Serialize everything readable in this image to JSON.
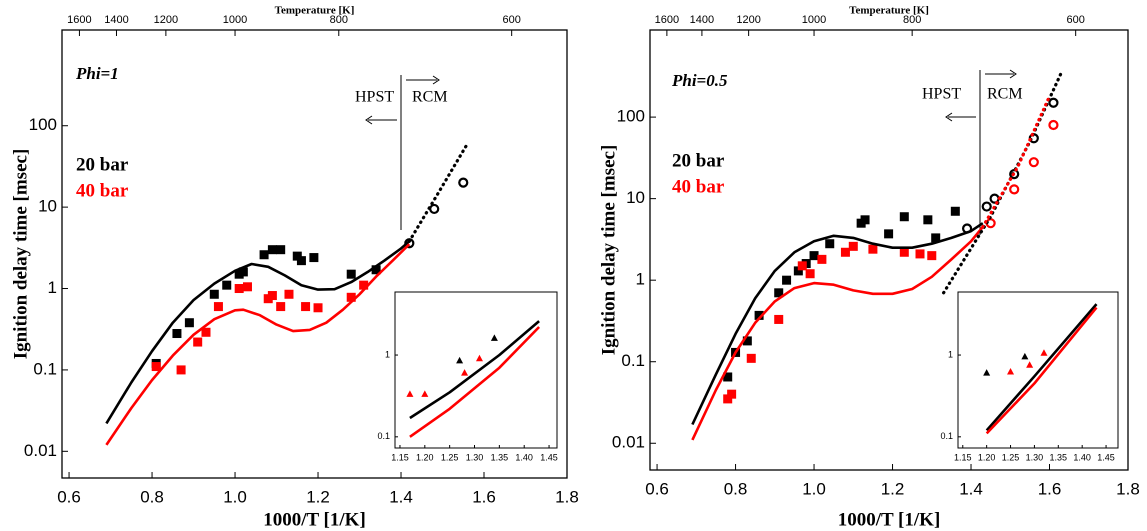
{
  "chart_data": [
    {
      "type": "scatter",
      "x_label": "1000/T [1/K]",
      "y_label": "Ignition delay time [msec]",
      "x2_label": "Temperature [K]",
      "annotations": [
        "Phi=1",
        "HPST",
        "RCM"
      ],
      "xlim": [
        0.583,
        1.8
      ],
      "xticks": [
        0.6,
        0.8,
        {
          "value": 1,
          "label": "1.0"
        },
        1.2,
        1.4,
        1.6,
        1.8
      ],
      "x2ticks": [
        1600,
        1400,
        1200,
        1000,
        800,
        600
      ],
      "y_scale": "log",
      "ylim": [
        0.0047,
        1500
      ],
      "yticks": [
        0.01,
        0.1,
        1,
        10,
        100
      ],
      "series": [
        {
          "name": "20 bar",
          "color": "#000000",
          "marker": "square",
          "x": [
            0.81,
            0.86,
            0.89,
            0.95,
            0.98,
            1.01,
            1.02,
            1.07,
            1.09,
            1.11,
            1.15,
            1.16,
            1.19,
            1.28,
            1.34
          ],
          "values": [
            0.12,
            0.28,
            0.38,
            0.85,
            1.1,
            1.5,
            1.6,
            2.6,
            3.0,
            3.0,
            2.5,
            2.2,
            2.4,
            1.5,
            1.7
          ]
        },
        {
          "name": "40 bar",
          "color": "#ff0000",
          "marker": "square",
          "x": [
            0.81,
            0.87,
            0.91,
            0.93,
            0.96,
            1.01,
            1.03,
            1.08,
            1.09,
            1.11,
            1.13,
            1.17,
            1.2,
            1.28,
            1.31
          ],
          "values": [
            0.11,
            0.1,
            0.22,
            0.29,
            0.6,
            1.0,
            1.05,
            0.75,
            0.82,
            0.6,
            0.85,
            0.6,
            0.58,
            0.78,
            1.1
          ]
        },
        {
          "color": "#000000",
          "marker": "circle-open",
          "x": [
            1.42,
            1.48,
            1.55
          ],
          "values": [
            3.6,
            9.5,
            20
          ]
        },
        {
          "color": "#000000",
          "line": "solid",
          "x": [
            0.69,
            0.75,
            0.8,
            0.85,
            0.9,
            0.95,
            1.0,
            1.04,
            1.08,
            1.12,
            1.16,
            1.2,
            1.24,
            1.28,
            1.32,
            1.36,
            1.4,
            1.42
          ],
          "values": [
            0.022,
            0.07,
            0.17,
            0.38,
            0.72,
            1.15,
            1.65,
            2.0,
            1.85,
            1.45,
            1.1,
            0.97,
            0.98,
            1.2,
            1.6,
            2.2,
            3.1,
            3.8
          ]
        },
        {
          "color": "#ff0000",
          "line": "solid",
          "x": [
            0.69,
            0.75,
            0.8,
            0.85,
            0.9,
            0.95,
            1.0,
            1.02,
            1.06,
            1.1,
            1.14,
            1.18,
            1.22,
            1.26,
            1.3,
            1.34,
            1.38,
            1.42
          ],
          "values": [
            0.012,
            0.034,
            0.075,
            0.15,
            0.27,
            0.42,
            0.54,
            0.55,
            0.47,
            0.36,
            0.3,
            0.31,
            0.38,
            0.55,
            0.85,
            1.4,
            2.2,
            3.5
          ]
        },
        {
          "color": "#000000",
          "line": "dotted",
          "x": [
            1.42,
            1.49,
            1.56
          ],
          "values": [
            3.8,
            15,
            60
          ]
        }
      ],
      "inset": {
        "xlim": [
          1.14,
          1.466
        ],
        "xticks": [
          1.15,
          {
            "value": 1.2,
            "label": "1.20"
          },
          1.25,
          {
            "value": 1.3,
            "label": "1.30"
          },
          1.35,
          {
            "value": 1.4,
            "label": "1.40"
          },
          1.45
        ],
        "y_scale": "log",
        "ylim": [
          0.073,
          5.9
        ],
        "yticks": [
          0.1,
          1
        ],
        "series": [
          {
            "color": "#000000",
            "marker": "triangle",
            "x": [
              1.27,
              1.34
            ],
            "values": [
              0.85,
              1.6
            ]
          },
          {
            "color": "#ff0000",
            "marker": "triangle",
            "x": [
              1.17,
              1.2,
              1.28,
              1.31
            ],
            "values": [
              0.33,
              0.33,
              0.6,
              0.9
            ]
          },
          {
            "color": "#000000",
            "line": "solid",
            "x": [
              1.17,
              1.25,
              1.35,
              1.43
            ],
            "values": [
              0.17,
              0.35,
              1.0,
              2.6
            ]
          },
          {
            "color": "#ff0000",
            "line": "solid",
            "x": [
              1.17,
              1.25,
              1.35,
              1.43
            ],
            "values": [
              0.1,
              0.22,
              0.7,
              2.2
            ]
          }
        ]
      }
    },
    {
      "type": "scatter",
      "x_label": "1000/T [1/K]",
      "y_label": "Ignition delay time [msec]",
      "x2_label": "Temperature [K]",
      "annotations": [
        "Phi=0.5",
        "HPST",
        "RCM"
      ],
      "xlim": [
        0.582,
        1.8
      ],
      "xticks": [
        0.6,
        0.8,
        {
          "value": 1,
          "label": "1.0"
        },
        1.2,
        1.4,
        1.6,
        1.8
      ],
      "x2ticks": [
        1600,
        1400,
        1200,
        1000,
        800,
        600
      ],
      "y_scale": "log",
      "ylim": [
        0.0047,
        1170
      ],
      "yticks": [
        0.01,
        0.1,
        1,
        10,
        100
      ],
      "series": [
        {
          "name": "20 bar",
          "color": "#000000",
          "marker": "square",
          "x": [
            0.78,
            0.8,
            0.83,
            0.86,
            0.91,
            0.93,
            0.96,
            0.98,
            1.0,
            1.04,
            1.12,
            1.13,
            1.19,
            1.23,
            1.29,
            1.31,
            1.36
          ],
          "values": [
            0.065,
            0.13,
            0.18,
            0.37,
            0.7,
            1.0,
            1.3,
            1.6,
            2.0,
            2.8,
            5.0,
            5.5,
            3.7,
            6.0,
            5.5,
            3.3,
            7.0
          ]
        },
        {
          "name": "40 bar",
          "color": "#ff0000",
          "marker": "square",
          "x": [
            0.78,
            0.79,
            0.84,
            0.91,
            0.97,
            0.99,
            1.02,
            1.08,
            1.1,
            1.15,
            1.23,
            1.27,
            1.3
          ],
          "values": [
            0.035,
            0.04,
            0.11,
            0.33,
            1.5,
            1.2,
            1.8,
            2.2,
            2.6,
            2.4,
            2.2,
            2.1,
            2.0
          ]
        },
        {
          "color": "#000000",
          "marker": "circle-open",
          "x": [
            1.39,
            1.44,
            1.46,
            1.51,
            1.56,
            1.61
          ],
          "values": [
            4.3,
            8,
            10,
            20,
            55,
            150
          ]
        },
        {
          "color": "#ff0000",
          "marker": "circle-open",
          "x": [
            1.45,
            1.51,
            1.56,
            1.61
          ],
          "values": [
            5,
            13,
            28,
            80
          ]
        },
        {
          "color": "#000000",
          "line": "solid",
          "x": [
            0.69,
            0.75,
            0.8,
            0.85,
            0.9,
            0.95,
            1.0,
            1.05,
            1.1,
            1.15,
            1.2,
            1.25,
            1.3,
            1.35,
            1.4,
            1.43
          ],
          "values": [
            0.017,
            0.07,
            0.22,
            0.6,
            1.3,
            2.2,
            3.0,
            3.5,
            3.3,
            2.8,
            2.5,
            2.5,
            2.8,
            3.3,
            4.0,
            5.0
          ]
        },
        {
          "color": "#ff0000",
          "line": "solid",
          "x": [
            0.69,
            0.75,
            0.8,
            0.85,
            0.9,
            0.95,
            1.0,
            1.05,
            1.1,
            1.15,
            1.2,
            1.25,
            1.3,
            1.35,
            1.4,
            1.43
          ],
          "values": [
            0.011,
            0.045,
            0.13,
            0.3,
            0.55,
            0.8,
            0.92,
            0.88,
            0.75,
            0.68,
            0.68,
            0.78,
            1.1,
            1.8,
            3.0,
            4.5
          ]
        },
        {
          "color": "#000000",
          "line": "dotted",
          "x": [
            1.33,
            1.45,
            1.55,
            1.63
          ],
          "values": [
            0.7,
            6,
            50,
            350
          ]
        },
        {
          "color": "#ff0000",
          "line": "dotted",
          "x": [
            1.43,
            1.52,
            1.6
          ],
          "values": [
            4.5,
            25,
            180
          ]
        }
      ],
      "inset": {
        "xlim": [
          1.14,
          1.475
        ],
        "xticks": [
          1.15,
          {
            "value": 1.2,
            "label": "1.20"
          },
          1.25,
          {
            "value": 1.3,
            "label": "1.30"
          },
          1.35,
          {
            "value": 1.4,
            "label": "1.40"
          },
          1.45
        ],
        "y_scale": "log",
        "ylim": [
          0.073,
          5.9
        ],
        "yticks": [
          0.1,
          1
        ],
        "series": [
          {
            "color": "#000000",
            "marker": "triangle",
            "x": [
              1.2,
              1.28
            ],
            "values": [
              0.6,
              0.95
            ]
          },
          {
            "color": "#ff0000",
            "marker": "triangle",
            "x": [
              1.25,
              1.29,
              1.32
            ],
            "values": [
              0.62,
              0.75,
              1.05
            ]
          },
          {
            "color": "#000000",
            "line": "solid",
            "x": [
              1.2,
              1.3,
              1.43
            ],
            "values": [
              0.12,
              0.55,
              4.2
            ]
          },
          {
            "color": "#ff0000",
            "line": "solid",
            "x": [
              1.2,
              1.3,
              1.43
            ],
            "values": [
              0.11,
              0.45,
              3.8
            ]
          }
        ]
      }
    }
  ]
}
